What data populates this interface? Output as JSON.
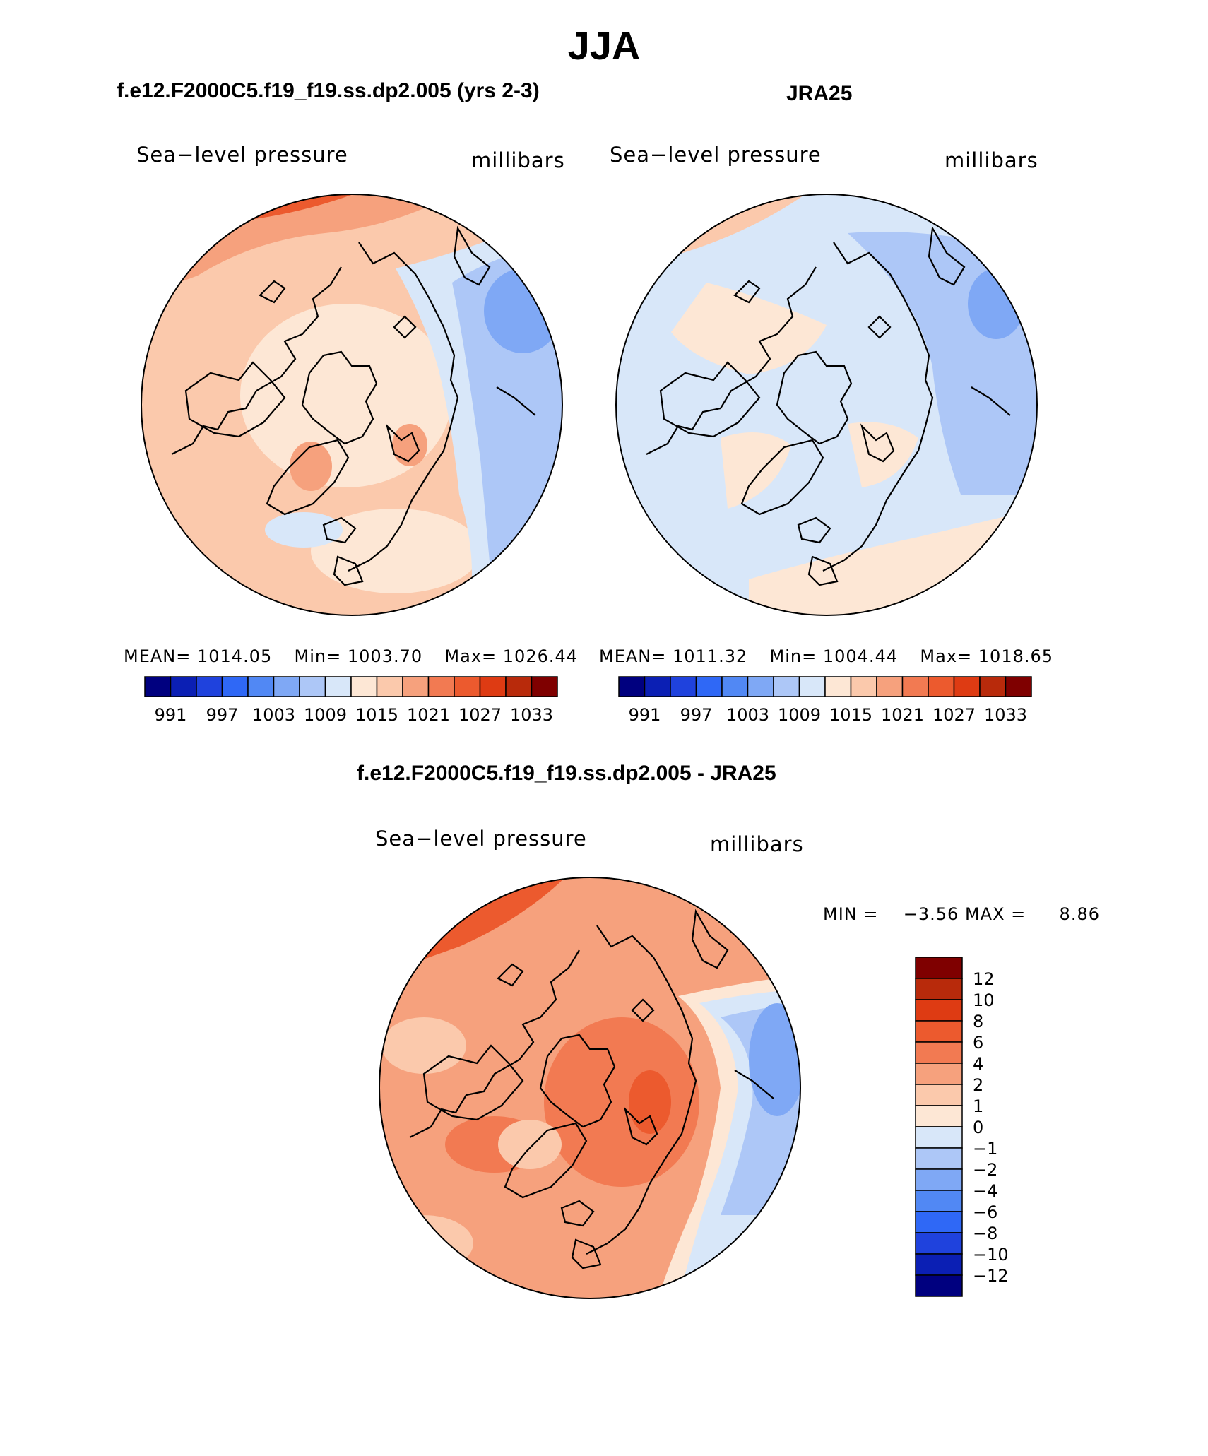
{
  "figure": {
    "season": "JJA",
    "model_title": "f.e12.F2000C5.f19_f19.ss.dp2.005 (yrs 2-3)",
    "obs_title": "JRA25",
    "diff_title": "f.e12.F2000C5.f19_f19.ss.dp2.005 - JRA25"
  },
  "panels": [
    {
      "variable": "Sea−level pressure",
      "units": "millibars",
      "stats": {
        "mean_label": "MEAN=",
        "mean": "1014.05",
        "min_label": "Min=",
        "min": "1003.70",
        "max_label": "Max=",
        "max": "1026.44"
      }
    },
    {
      "variable": "Sea−level pressure",
      "units": "millibars",
      "stats": {
        "mean_label": "MEAN=",
        "mean": "1011.32",
        "min_label": "Min=",
        "min": "1004.44",
        "max_label": "Max=",
        "max": "1018.65"
      }
    },
    {
      "variable": "Sea−level pressure",
      "units": "millibars",
      "stats": {
        "min_label": "MIN =",
        "min": "−3.56",
        "max_label": "MAX =",
        "max": "8.86"
      }
    }
  ],
  "field_colorbar": {
    "labels": [
      "991",
      "997",
      "1003",
      "1009",
      "1015",
      "1021",
      "1027",
      "1033"
    ],
    "colors": [
      "#00007f",
      "#0b1fb4",
      "#1f42dd",
      "#2f68f6",
      "#5188f4",
      "#7fa8f5",
      "#adc7f7",
      "#d8e7f9",
      "#fde7d5",
      "#fbc9ac",
      "#f6a17d",
      "#f27a52",
      "#ec5a2e",
      "#de3b13",
      "#b82a0b",
      "#7f0000"
    ]
  },
  "diff_colorbar": {
    "labels": [
      "12",
      "10",
      "8",
      "6",
      "4",
      "2",
      "1",
      "0",
      "−1",
      "−2",
      "−4",
      "−6",
      "−8",
      "−10",
      "−12"
    ],
    "colors": [
      "#7f0000",
      "#b82a0b",
      "#de3b13",
      "#ec5a2e",
      "#f27a52",
      "#f6a17d",
      "#fbc9ac",
      "#fde7d5",
      "#d8e7f9",
      "#adc7f7",
      "#7fa8f5",
      "#5188f4",
      "#2f68f6",
      "#1f42dd",
      "#0b1fb4",
      "#00007f"
    ]
  }
}
